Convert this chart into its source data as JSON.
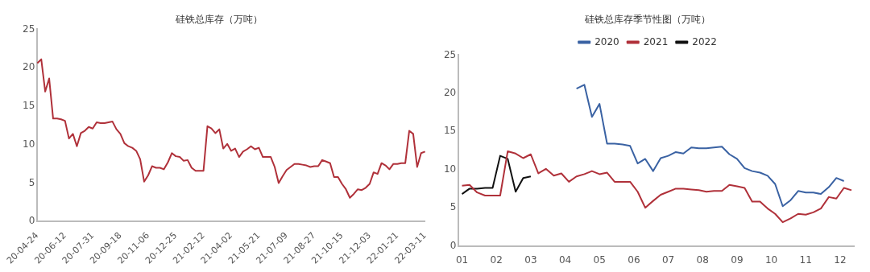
{
  "chart_data": [
    {
      "type": "line",
      "title": "硅铁总库存（万吨）",
      "categories": [
        "20-04-24",
        null,
        null,
        null,
        null,
        null,
        null,
        "20-06-12",
        null,
        null,
        null,
        null,
        null,
        null,
        "20-07-31",
        null,
        null,
        null,
        null,
        null,
        null,
        "20-09-18",
        null,
        null,
        null,
        null,
        null,
        null,
        "20-11-06",
        null,
        null,
        null,
        null,
        null,
        null,
        "20-12-25",
        null,
        null,
        null,
        null,
        null,
        null,
        "21-02-12",
        null,
        null,
        null,
        null,
        null,
        null,
        "21-04-02",
        null,
        null,
        null,
        null,
        null,
        null,
        "21-05-21",
        null,
        null,
        null,
        null,
        null,
        null,
        "21-07-09",
        null,
        null,
        null,
        null,
        null,
        null,
        "21-08-27",
        null,
        null,
        null,
        null,
        null,
        null,
        "21-10-15",
        null,
        null,
        null,
        null,
        null,
        null,
        "21-12-03",
        null,
        null,
        null,
        null,
        null,
        null,
        "22-01-21",
        null,
        null,
        null,
        null,
        null,
        null,
        "22-03-11"
      ],
      "series": [
        {
          "color": "#b0313a",
          "values": [
            20.6,
            21.1,
            16.9,
            18.6,
            13.4,
            13.4,
            13.3,
            13.1,
            10.8,
            11.4,
            9.8,
            11.5,
            11.8,
            12.3,
            12.1,
            12.9,
            12.8,
            12.8,
            12.9,
            13.0,
            12.0,
            11.4,
            10.2,
            9.8,
            9.6,
            9.2,
            8.1,
            5.2,
            6.0,
            7.2,
            7.0,
            7.0,
            6.8,
            7.7,
            8.9,
            8.5,
            8.4,
            7.9,
            8.0,
            7.0,
            6.6,
            6.6,
            6.6,
            12.4,
            12.1,
            11.5,
            12.0,
            9.5,
            10.1,
            9.2,
            9.5,
            8.4,
            9.1,
            9.4,
            9.8,
            9.4,
            9.6,
            8.4,
            8.4,
            8.4,
            7.1,
            5.0,
            5.9,
            6.7,
            7.1,
            7.5,
            7.5,
            7.4,
            7.3,
            7.1,
            7.2,
            7.2,
            8.0,
            7.8,
            7.6,
            5.8,
            5.8,
            4.9,
            4.2,
            3.1,
            3.6,
            4.2,
            4.1,
            4.4,
            4.9,
            6.4,
            6.2,
            7.6,
            7.3,
            6.8,
            7.5,
            7.5,
            7.6,
            7.6,
            11.8,
            11.4,
            7.1,
            8.9,
            9.1
          ]
        }
      ],
      "ylim": [
        0,
        25
      ],
      "yticks": [
        0,
        5,
        10,
        15,
        20,
        25
      ],
      "grid": false,
      "marker": "none",
      "line_style": "solid"
    },
    {
      "type": "line",
      "title": "硅铁总库存季节性图（万吨）",
      "legend": "top",
      "grid": false,
      "marker": "none",
      "line_style": "solid",
      "xlim": [
        0.9,
        12.4
      ],
      "xticks": [
        {
          "value": 1,
          "label": "01"
        },
        {
          "value": 2,
          "label": "02"
        },
        {
          "value": 3,
          "label": "03"
        },
        {
          "value": 4,
          "label": "04"
        },
        {
          "value": 5,
          "label": "05"
        },
        {
          "value": 6,
          "label": "06"
        },
        {
          "value": 7,
          "label": "07"
        },
        {
          "value": 8,
          "label": "08"
        },
        {
          "value": 9,
          "label": "09"
        },
        {
          "value": 10,
          "label": "10"
        },
        {
          "value": 11,
          "label": "11"
        },
        {
          "value": 12,
          "label": "12"
        }
      ],
      "ylim": [
        0,
        25
      ],
      "yticks": [
        0,
        5,
        10,
        15,
        20,
        25
      ],
      "series": [
        {
          "name": "2020",
          "color": "#3a62a3",
          "x": [
            4.33,
            4.56,
            4.78,
            5.0,
            5.22,
            5.44,
            5.67,
            5.89,
            6.11,
            6.33,
            6.56,
            6.78,
            7.0,
            7.22,
            7.44,
            7.67,
            7.89,
            8.11,
            8.33,
            8.56,
            8.78,
            9.0,
            9.22,
            9.44,
            9.67,
            9.89,
            10.11,
            10.33,
            10.56,
            10.78,
            11.0,
            11.22,
            11.44,
            11.67,
            11.89,
            12.11
          ],
          "values": [
            20.6,
            21.1,
            16.9,
            18.6,
            13.4,
            13.4,
            13.3,
            13.1,
            10.8,
            11.4,
            9.8,
            11.5,
            11.8,
            12.3,
            12.1,
            12.9,
            12.8,
            12.8,
            12.9,
            13.0,
            12.0,
            11.4,
            10.2,
            9.8,
            9.6,
            9.2,
            8.1,
            5.2,
            6.0,
            7.2,
            7.0,
            7.0,
            6.8,
            7.7,
            8.9,
            8.5
          ]
        },
        {
          "name": "2021",
          "color": "#b0313a",
          "x": [
            1,
            1.22,
            1.44,
            1.67,
            1.89,
            2.11,
            2.33,
            2.56,
            2.78,
            3.0,
            3.22,
            3.44,
            3.67,
            3.89,
            4.11,
            4.33,
            4.56,
            4.78,
            5.0,
            5.22,
            5.44,
            5.67,
            5.89,
            6.11,
            6.33,
            6.56,
            6.78,
            7.0,
            7.22,
            7.44,
            7.67,
            7.89,
            8.11,
            8.33,
            8.56,
            8.78,
            9.0,
            9.22,
            9.44,
            9.67,
            9.89,
            10.11,
            10.33,
            10.56,
            10.78,
            11.0,
            11.22,
            11.44,
            11.67,
            11.89,
            12.11,
            12.33
          ],
          "values": [
            7.9,
            8.0,
            7.0,
            6.6,
            6.6,
            6.6,
            12.4,
            12.1,
            11.5,
            12.0,
            9.5,
            10.1,
            9.2,
            9.5,
            8.4,
            9.1,
            9.4,
            9.8,
            9.4,
            9.6,
            8.4,
            8.4,
            8.4,
            7.1,
            5.0,
            5.9,
            6.7,
            7.1,
            7.5,
            7.5,
            7.4,
            7.3,
            7.1,
            7.2,
            7.2,
            8.0,
            7.8,
            7.6,
            5.8,
            5.8,
            4.9,
            4.2,
            3.1,
            3.6,
            4.2,
            4.1,
            4.4,
            4.9,
            6.4,
            6.2,
            7.6,
            7.3
          ]
        },
        {
          "name": "2022",
          "color": "#111111",
          "x": [
            1,
            1.22,
            1.44,
            1.67,
            1.89,
            2.11,
            2.33,
            2.56,
            2.78,
            3.0
          ],
          "values": [
            6.8,
            7.5,
            7.5,
            7.6,
            7.6,
            11.8,
            11.4,
            7.1,
            8.9,
            9.1
          ]
        }
      ]
    }
  ]
}
